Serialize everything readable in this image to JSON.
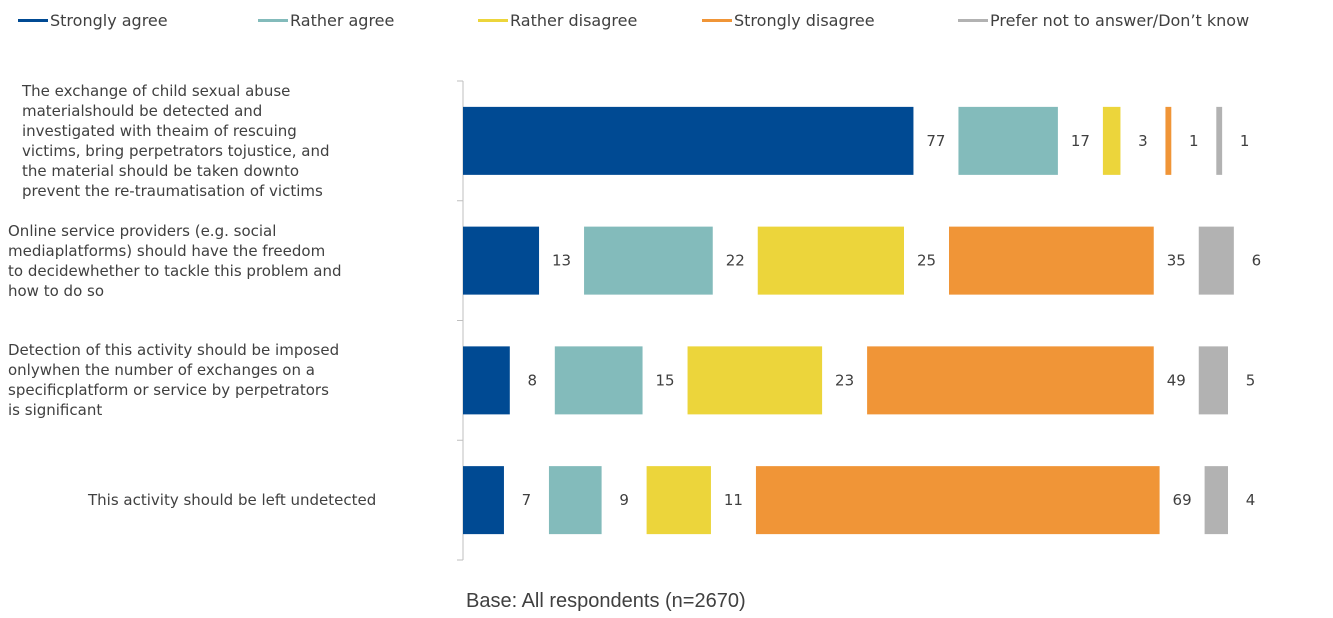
{
  "chart_data": {
    "type": "bar",
    "orientation": "horizontal",
    "stacked": true,
    "categories": [
      "The exchange of child sexual abuse materialshould be detected and investigated with theaim of rescuing victims, bring perpetrators tojustice, and the material should be taken downto prevent the re-traumatisation of victims",
      "Online service providers (e.g. social mediaplatforms) should have the freedom to decidewhether to tackle this problem and how to do so",
      "Detection of this activity should be imposed onlywhen the number of exchanges on a specificplatform or service by perpetrators is significant",
      "This activity should be left undetected"
    ],
    "category_lines": [
      [
        "The exchange of child sexual abuse",
        "materialshould be detected and",
        "investigated with theaim of rescuing",
        "victims, bring perpetrators tojustice, and",
        "the material should be taken downto",
        "prevent the re-traumatisation of victims"
      ],
      [
        "Online service providers (e.g. social",
        "mediaplatforms) should have the freedom",
        "to decidewhether to tackle this problem and",
        "how to do so"
      ],
      [
        "Detection of this activity should be imposed",
        "onlywhen the number of exchanges on a",
        "specificplatform or service by perpetrators",
        "is significant"
      ],
      [
        "This activity should be left undetected"
      ]
    ],
    "series": [
      {
        "name": "Strongly agree",
        "color": "#004a93",
        "values": [
          77,
          13,
          8,
          7
        ]
      },
      {
        "name": "Rather agree",
        "color": "#83bbbb",
        "values": [
          17,
          22,
          15,
          9
        ]
      },
      {
        "name": "Rather disagree",
        "color": "#ecd53b",
        "values": [
          3,
          25,
          23,
          11
        ]
      },
      {
        "name": "Strongly disagree",
        "color": "#f09537",
        "values": [
          1,
          35,
          49,
          69
        ]
      },
      {
        "name": "Prefer not to answer/Don’t know",
        "color": "#b2b2b2",
        "values": [
          1,
          6,
          5,
          4
        ]
      }
    ],
    "data_labels": true,
    "legend_position": "top",
    "grid": false,
    "footnote": "Base: All respondents (n=2670)"
  }
}
